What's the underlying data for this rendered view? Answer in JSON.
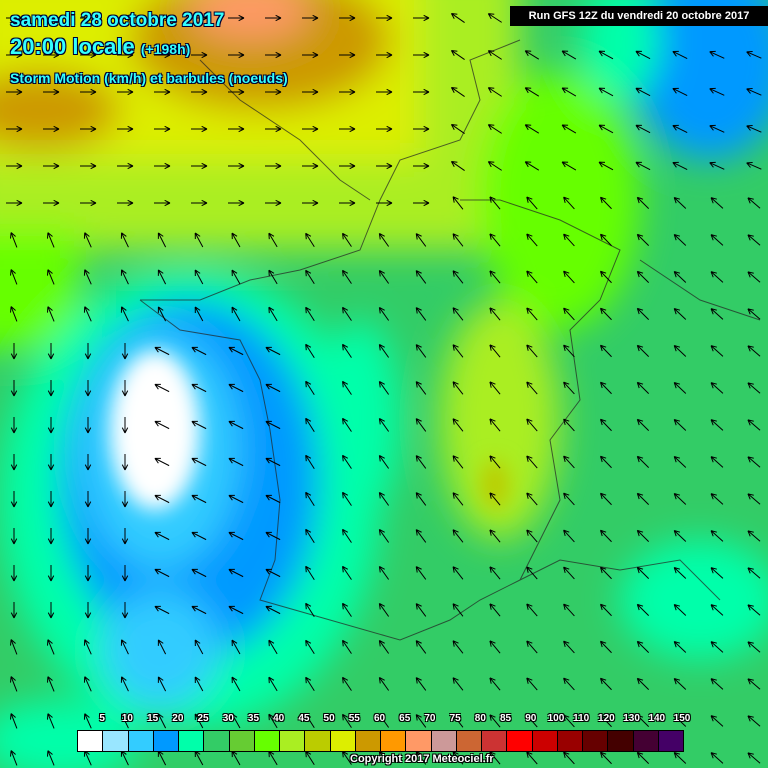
{
  "header": {
    "date": "samedi 28 octobre 2017",
    "time": "20:00 locale",
    "lead": "(+198h)",
    "parameter": "Storm Motion (km/h) et barbules (noeuds)",
    "run": "Run GFS 12Z du vendredi 20 octobre 2017"
  },
  "legend": {
    "labels": [
      "5",
      "10",
      "15",
      "20",
      "25",
      "30",
      "35",
      "40",
      "45",
      "50",
      "55",
      "60",
      "65",
      "70",
      "75",
      "80",
      "85",
      "90",
      "100",
      "110",
      "120",
      "130",
      "140",
      "150"
    ],
    "colors": [
      "#ffffff",
      "#99e6ff",
      "#33ccff",
      "#0099ff",
      "#00ffaa",
      "#33cc66",
      "#66cc33",
      "#66ff00",
      "#aaee22",
      "#bbcc00",
      "#ddee00",
      "#cc9900",
      "#ff9900",
      "#ff9966",
      "#cc9999",
      "#cc6633",
      "#cc3333",
      "#ff0000",
      "#cc0000",
      "#990000",
      "#660000",
      "#440000",
      "#440033",
      "#440066"
    ]
  },
  "copyright": "Copyright 2017 Meteociel.fr"
}
